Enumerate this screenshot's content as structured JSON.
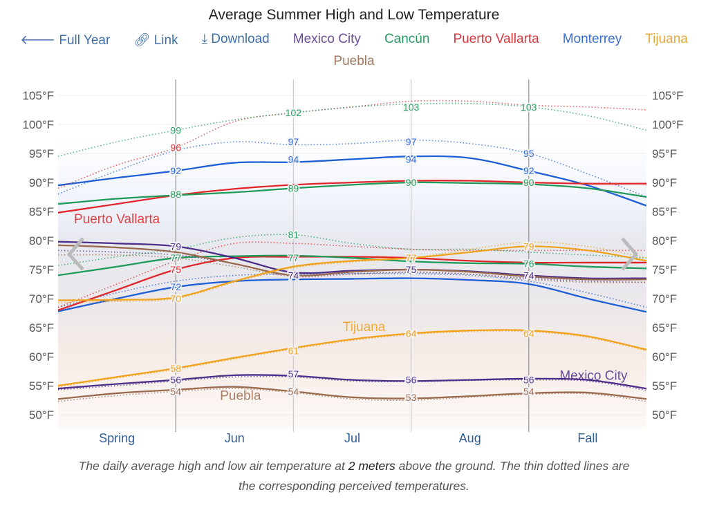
{
  "header": {
    "title": "Average Summer High and Low Temperature",
    "tools": [
      {
        "label": "Full Year",
        "icon": "arrow-left-icon"
      },
      {
        "label": "Link",
        "icon": "link-icon"
      },
      {
        "label": "Download",
        "icon": "download-icon"
      }
    ]
  },
  "legend": [
    {
      "label": "Mexico City",
      "color": "#6a4c9c"
    },
    {
      "label": "Cancún",
      "color": "#2a9a62"
    },
    {
      "label": "Puerto Vallarta",
      "color": "#d9363e"
    },
    {
      "label": "Monterrey",
      "color": "#3a6fd0"
    },
    {
      "label": "Tijuana",
      "color": "#e8a83a"
    },
    {
      "label": "Puebla",
      "color": "#a07860"
    }
  ],
  "caption": {
    "part1": "The daily average high and low air temperature at ",
    "bold": "2 meters",
    "part2": " above the ground. The thin dotted lines are",
    "line2": "the corresponding perceived temperatures."
  },
  "chart_data": {
    "type": "line",
    "title": "Average Summer High and Low Temperature",
    "ylim": [
      50,
      105
    ],
    "yticks": [
      "50°F",
      "55°F",
      "60°F",
      "65°F",
      "70°F",
      "75°F",
      "80°F",
      "85°F",
      "90°F",
      "95°F",
      "100°F",
      "105°F"
    ],
    "xlim": [
      0,
      5
    ],
    "categories": [
      "Spring",
      "Jun",
      "Jul",
      "Aug",
      "Fall"
    ],
    "x": [
      0,
      0.5,
      1,
      1.5,
      2,
      2.5,
      3,
      3.5,
      4,
      4.5,
      5
    ],
    "series": [
      {
        "name": "Monterrey",
        "color": "#1f5fd6",
        "high": [
          89.5,
          90.8,
          92,
          93.4,
          93.5,
          94,
          94.5,
          94.2,
          92,
          89.5,
          86
        ],
        "low": [
          67.8,
          70,
          72,
          73,
          73.3,
          73.4,
          73.5,
          73.2,
          72.5,
          70,
          67.7
        ],
        "feel_high": [
          88,
          92,
          95.5,
          97,
          96.5,
          96.7,
          97.3,
          96.7,
          95,
          91.5,
          87.5
        ],
        "feel_low": [
          68.5,
          71,
          73,
          74,
          74.2,
          74.3,
          74.3,
          74,
          73,
          71,
          68.5
        ]
      },
      {
        "name": "Puerto Vallarta",
        "color": "#e0262a",
        "high": [
          84.8,
          86.3,
          87.8,
          88.9,
          89.6,
          90,
          90.3,
          90.3,
          90,
          89.8,
          89.8
        ],
        "low": [
          68,
          71.5,
          75,
          77,
          77.2,
          77.2,
          77,
          76.5,
          76.2,
          76.2,
          76.2
        ],
        "feel_high": [
          89,
          93,
          96,
          100.5,
          102,
          103,
          104,
          104,
          103.3,
          103,
          102.5
        ],
        "feel_low": [
          68.5,
          72.5,
          76.5,
          79.5,
          79.5,
          79,
          78.5,
          78.3,
          78.3,
          78.3,
          78.3
        ]
      },
      {
        "name": "Cancún",
        "color": "#1f9a5a",
        "high": [
          86.3,
          87.2,
          87.8,
          88.3,
          89,
          89.6,
          90,
          89.9,
          89.7,
          89,
          87.5
        ],
        "low": [
          74,
          75.5,
          77,
          77.3,
          77.4,
          77,
          76.4,
          76.1,
          76,
          75.5,
          75.2
        ],
        "feel_high": [
          94.5,
          97,
          99,
          100.8,
          102,
          103,
          103.5,
          103.6,
          103,
          101.5,
          99
        ],
        "feel_low": [
          75.7,
          77.2,
          78.5,
          80.5,
          81,
          79.5,
          78.5,
          78.5,
          78,
          77.5,
          77
        ]
      },
      {
        "name": "Mexico City",
        "color": "#4d2f8a",
        "high": [
          79.8,
          79.5,
          79,
          77,
          74.5,
          74.8,
          75,
          74.7,
          74,
          73.5,
          73.5
        ],
        "low": [
          54.5,
          55.3,
          56,
          56.8,
          56.7,
          56,
          55.8,
          56,
          56.2,
          56,
          54.5
        ],
        "feel_high": [
          78.3,
          78,
          77.5,
          76,
          74,
          74.3,
          74.5,
          74.2,
          73.5,
          73,
          72.8
        ],
        "feel_low": [
          54.3,
          55,
          55.8,
          56.5,
          56.5,
          55.8,
          55.7,
          55.9,
          56,
          55.8,
          54.2
        ]
      },
      {
        "name": "Puebla",
        "color": "#9a6a4f",
        "high": [
          79.2,
          78.8,
          78,
          76,
          74,
          74.6,
          75,
          74.6,
          73.8,
          73.3,
          73.3
        ],
        "low": [
          52.7,
          53.7,
          54.3,
          54.8,
          54,
          53,
          52.8,
          53.2,
          53.7,
          53.8,
          52.7
        ],
        "feel_high": [
          77.5,
          77.5,
          77,
          75.5,
          73.8,
          74.2,
          74.6,
          74.2,
          73.3,
          72.8,
          72.8
        ],
        "feel_low": [
          52.3,
          53.3,
          54,
          54.5,
          53.8,
          52.7,
          52.5,
          53,
          53.5,
          53.6,
          52.3
        ]
      },
      {
        "name": "Tijuana",
        "color": "#f0a21d",
        "high": [
          69.7,
          69.8,
          70.2,
          73,
          75.5,
          76.5,
          77,
          78,
          79,
          78.3,
          76.5
        ],
        "low": [
          55,
          56.5,
          58,
          59.8,
          61.5,
          63,
          64,
          64.5,
          64.5,
          63.5,
          61.2
        ],
        "feel_high": [
          69.3,
          69.5,
          70,
          72.8,
          75.3,
          76.3,
          77,
          78.5,
          79.7,
          79,
          77
        ],
        "feel_low": [
          54.8,
          56.3,
          57.8,
          59.6,
          61.3,
          62.8,
          63.8,
          64.3,
          64.3,
          63.3,
          61
        ]
      }
    ],
    "data_labels": [
      {
        "x": 1,
        "value": 99,
        "series": "Cancún"
      },
      {
        "x": 1,
        "value": 96,
        "series": "Puerto Vallarta"
      },
      {
        "x": 1,
        "value": 92,
        "series": "Monterrey"
      },
      {
        "x": 1,
        "value": 88,
        "series": "Cancún"
      },
      {
        "x": 1,
        "value": 79,
        "series": "Mexico City"
      },
      {
        "x": 1,
        "value": 77,
        "series": "Cancún"
      },
      {
        "x": 1,
        "value": 75,
        "series": "Puerto Vallarta"
      },
      {
        "x": 1,
        "value": 72,
        "series": "Monterrey"
      },
      {
        "x": 1,
        "value": 70,
        "series": "Tijuana"
      },
      {
        "x": 1,
        "value": 58,
        "series": "Tijuana"
      },
      {
        "x": 1,
        "value": 56,
        "series": "Mexico City"
      },
      {
        "x": 1,
        "value": 54,
        "series": "Puebla"
      },
      {
        "x": 2,
        "value": 102,
        "series": "Cancún"
      },
      {
        "x": 2,
        "value": 97,
        "series": "Monterrey"
      },
      {
        "x": 2,
        "value": 94,
        "series": "Monterrey"
      },
      {
        "x": 2,
        "value": 89,
        "series": "Cancún"
      },
      {
        "x": 2,
        "value": 81,
        "series": "Cancún"
      },
      {
        "x": 2,
        "value": 77,
        "series": "Cancún"
      },
      {
        "x": 2,
        "value": 74,
        "series": "Mexico City"
      },
      {
        "x": 2,
        "value": 61,
        "series": "Tijuana"
      },
      {
        "x": 2,
        "value": 57,
        "series": "Mexico City"
      },
      {
        "x": 2,
        "value": 54,
        "series": "Puebla"
      },
      {
        "x": 3,
        "value": 103,
        "series": "Cancún"
      },
      {
        "x": 3,
        "value": 97,
        "series": "Monterrey"
      },
      {
        "x": 3,
        "value": 94,
        "series": "Monterrey"
      },
      {
        "x": 3,
        "value": 90,
        "series": "Cancún"
      },
      {
        "x": 3,
        "value": 77,
        "series": "Tijuana"
      },
      {
        "x": 3,
        "value": 75,
        "series": "Mexico City"
      },
      {
        "x": 3,
        "value": 64,
        "series": "Tijuana"
      },
      {
        "x": 3,
        "value": 56,
        "series": "Mexico City"
      },
      {
        "x": 3,
        "value": 53,
        "series": "Puebla"
      },
      {
        "x": 4,
        "value": 103,
        "series": "Cancún"
      },
      {
        "x": 4,
        "value": 95,
        "series": "Monterrey"
      },
      {
        "x": 4,
        "value": 92,
        "series": "Monterrey"
      },
      {
        "x": 4,
        "value": 90,
        "series": "Cancún"
      },
      {
        "x": 4,
        "value": 79,
        "series": "Tijuana"
      },
      {
        "x": 4,
        "value": 76,
        "series": "Cancún"
      },
      {
        "x": 4,
        "value": 74,
        "series": "Mexico City"
      },
      {
        "x": 4,
        "value": 64,
        "series": "Tijuana"
      },
      {
        "x": 4,
        "value": 56,
        "series": "Mexico City"
      },
      {
        "x": 4,
        "value": 54,
        "series": "Puebla"
      }
    ],
    "annotations": [
      {
        "text": "Puerto Vallarta",
        "x": 0.5,
        "value": 83.7,
        "series": "Puerto Vallarta"
      },
      {
        "text": "Tijuana",
        "x": 2.6,
        "value": 65.1,
        "series": "Tijuana"
      },
      {
        "text": "Puebla",
        "x": 1.55,
        "value": 53.3,
        "series": "Puebla"
      },
      {
        "text": "Mexico City",
        "x": 4.55,
        "value": 56.7,
        "series": "Mexico City"
      }
    ]
  }
}
